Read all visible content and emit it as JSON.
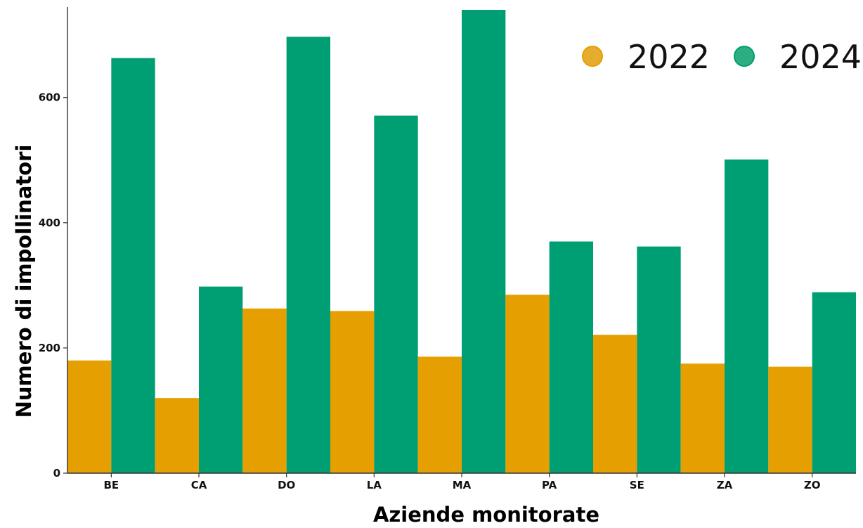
{
  "chart_data": {
    "type": "bar",
    "title": "",
    "xlabel": "Aziende monitorate",
    "ylabel": "Numero di impollinatori",
    "categories": [
      "BE",
      "CA",
      "DO",
      "LA",
      "MA",
      "PA",
      "SE",
      "ZA",
      "ZO"
    ],
    "series": [
      {
        "name": "2022",
        "color": "#E69F00",
        "values": [
          180,
          120,
          263,
          259,
          186,
          285,
          221,
          175,
          170
        ]
      },
      {
        "name": "2024",
        "color": "#009E73",
        "values": [
          663,
          298,
          697,
          571,
          740,
          370,
          362,
          501,
          289
        ]
      }
    ],
    "ylim": [
      0,
      740
    ],
    "yticks": [
      0,
      200,
      400,
      600
    ],
    "grid": false,
    "legend_position": "top-right",
    "legend_marker_colors": [
      "#E5AC2E",
      "#2FAD82"
    ]
  }
}
